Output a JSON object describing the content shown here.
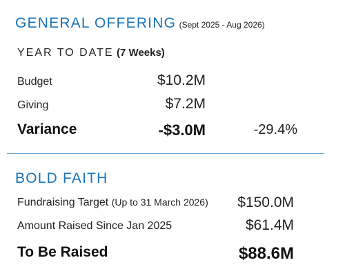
{
  "general_offering": {
    "title": "GENERAL OFFERING",
    "period": "(Sept 2025 - Aug 2026)",
    "ytd_label": "YEAR TO DATE",
    "ytd_qualifier": "(7 Weeks)",
    "rows": [
      {
        "label": "Budget",
        "value": "$10.2M"
      },
      {
        "label": "Giving",
        "value": "$7.2M"
      }
    ],
    "variance": {
      "label": "Variance",
      "value": "-$3.0M",
      "percent": "-29.4%"
    }
  },
  "bold_faith": {
    "title": "BOLD FAITH",
    "target": {
      "label": "Fundraising Target",
      "qualifier": "(Up to 31 March 2026)",
      "value": "$150.0M"
    },
    "raised": {
      "label": "Amount Raised Since Jan 2025",
      "value": "$61.4M"
    },
    "to_be_raised": {
      "label": "To Be Raised",
      "value": "$88.6M"
    }
  },
  "colors": {
    "accent": "#1a73b8",
    "divider": "#6fa8d6",
    "text": "#1d1d1f"
  }
}
